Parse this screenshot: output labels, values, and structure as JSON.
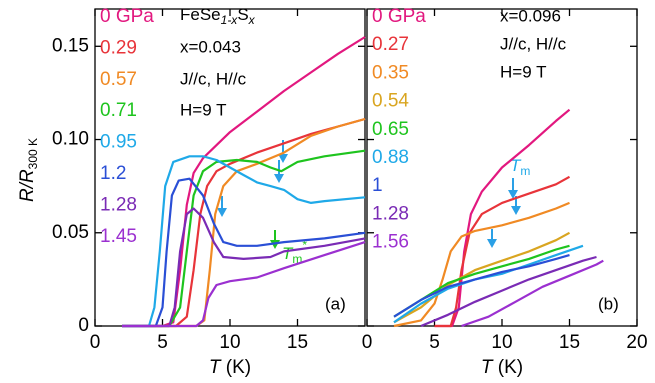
{
  "chart_data": [
    {
      "type": "line",
      "panel": "(a)",
      "formula": [
        "FeSe",
        "1-x",
        "S",
        "x"
      ],
      "annotations": [
        "x=0.043",
        "J//c,  H//c",
        "H=9 T"
      ],
      "marker_label": [
        "T",
        "m",
        "*"
      ],
      "ylabel": [
        "R/R",
        "300 K"
      ],
      "xlabel": [
        "T",
        "(K)"
      ],
      "xlim": [
        0,
        20
      ],
      "ylim": [
        0,
        0.17
      ],
      "xticks": [
        0,
        5,
        10,
        15
      ],
      "yticks": [
        0,
        0.05,
        {
          "value": 0.1,
          "label": "0.10"
        },
        0.15
      ],
      "series": [
        {
          "name": "0 GPa",
          "color": "#e2187f",
          "x": [
            2,
            5,
            5.8,
            6.3,
            6.8,
            7.3,
            8,
            10,
            12,
            14,
            16,
            18,
            20
          ],
          "values": [
            0,
            0,
            0.002,
            0.03,
            0.065,
            0.082,
            0.09,
            0.104,
            0.115,
            0.126,
            0.136,
            0.146,
            0.155
          ]
        },
        {
          "name": "0.29",
          "color": "#e8343a",
          "x": [
            2,
            6,
            6.8,
            7.3,
            7.8,
            8.3,
            9,
            10,
            12,
            14,
            16,
            18,
            20
          ],
          "values": [
            0,
            0,
            0.005,
            0.03,
            0.06,
            0.075,
            0.083,
            0.087,
            0.093,
            0.098,
            0.103,
            0.107,
            0.111
          ]
        },
        {
          "name": "0.57",
          "color": "#f08a24",
          "x": [
            2,
            7.5,
            8.1,
            8.5,
            8.9,
            9.5,
            10.5,
            12,
            14,
            16,
            18,
            20
          ],
          "values": [
            0,
            0,
            0.003,
            0.03,
            0.06,
            0.075,
            0.083,
            0.087,
            0.093,
            0.102,
            0.107,
            0.111
          ]
        },
        {
          "name": "0.71",
          "color": "#1ec41e",
          "x": [
            2,
            5.5,
            6.3,
            6.8,
            7.3,
            8,
            9,
            10.5,
            12,
            13,
            13.8,
            15,
            17,
            20
          ],
          "values": [
            0,
            0,
            0.01,
            0.04,
            0.07,
            0.083,
            0.088,
            0.089,
            0.088,
            0.085,
            0.083,
            0.088,
            0.091,
            0.094
          ]
        },
        {
          "name": "0.95",
          "color": "#1fa9e8",
          "x": [
            2,
            4,
            4.4,
            4.8,
            5.2,
            5.8,
            7,
            8,
            9,
            10,
            11,
            12,
            13,
            14,
            15,
            16,
            17,
            20
          ],
          "values": [
            0,
            0,
            0.01,
            0.04,
            0.075,
            0.088,
            0.091,
            0.091,
            0.089,
            0.085,
            0.081,
            0.077,
            0.075,
            0.073,
            0.068,
            0.066,
            0.067,
            0.069
          ]
        },
        {
          "name": "1.2",
          "color": "#2a4fd6",
          "x": [
            2,
            4.5,
            5,
            5.3,
            5.7,
            6.2,
            7,
            8,
            8.8,
            9.5,
            10.5,
            12,
            14,
            17,
            20
          ],
          "values": [
            0,
            0,
            0.01,
            0.04,
            0.07,
            0.078,
            0.079,
            0.07,
            0.055,
            0.045,
            0.043,
            0.043,
            0.045,
            0.047,
            0.05
          ]
        },
        {
          "name": "1.28",
          "color": "#7a2bb5",
          "x": [
            2,
            5.5,
            5.9,
            6.3,
            6.8,
            7.3,
            8,
            8.8,
            9.5,
            11,
            13,
            14,
            17,
            20
          ],
          "values": [
            0,
            0,
            0.01,
            0.04,
            0.06,
            0.063,
            0.058,
            0.045,
            0.037,
            0.036,
            0.037,
            0.04,
            0.043,
            0.047
          ]
        },
        {
          "name": "1.45",
          "color": "#9b30d0",
          "x": [
            2,
            7.5,
            8,
            8.4,
            9,
            10,
            12,
            14,
            17,
            20
          ],
          "values": [
            0,
            0,
            0.003,
            0.015,
            0.022,
            0.024,
            0.026,
            0.031,
            0.038,
            0.045
          ]
        }
      ]
    },
    {
      "type": "line",
      "panel": "(b)",
      "annotations": [
        "x=0.096",
        "J//c,  H//c",
        "H=9 T"
      ],
      "marker_label": [
        "T",
        "m"
      ],
      "xlabel": [
        "T",
        "(K)"
      ],
      "xlim": [
        0,
        20
      ],
      "ylim": [
        0,
        0.17
      ],
      "xticks": [
        0,
        5,
        10,
        15,
        20
      ],
      "yticks": [
        0,
        0.05,
        0.1,
        0.15
      ],
      "series": [
        {
          "name": "0 GPa",
          "color": "#e2187f",
          "x": [
            5,
            6.3,
            6.8,
            7.2,
            7.7,
            8.5,
            10,
            12,
            14,
            15
          ],
          "values": [
            0,
            0,
            0.01,
            0.04,
            0.06,
            0.072,
            0.085,
            0.097,
            0.11,
            0.116
          ]
        },
        {
          "name": "0.27",
          "color": "#e8343a",
          "x": [
            5,
            6.2,
            6.6,
            7,
            7.6,
            8.5,
            10,
            12,
            14,
            15
          ],
          "values": [
            0,
            0,
            0.01,
            0.03,
            0.05,
            0.06,
            0.066,
            0.071,
            0.076,
            0.08
          ]
        },
        {
          "name": "0.35",
          "color": "#f08a24",
          "x": [
            2,
            4,
            5,
            5.6,
            6.2,
            7,
            8,
            10,
            12,
            14,
            15
          ],
          "values": [
            0,
            0.003,
            0.012,
            0.025,
            0.04,
            0.048,
            0.051,
            0.054,
            0.058,
            0.063,
            0.066
          ]
        },
        {
          "name": "0.54",
          "color": "#d9a520",
          "x": [
            2,
            4,
            6,
            8,
            10,
            12,
            14,
            15
          ],
          "values": [
            0.002,
            0.01,
            0.022,
            0.03,
            0.035,
            0.04,
            0.046,
            0.05
          ]
        },
        {
          "name": "0.65",
          "color": "#1ec41e",
          "x": [
            2,
            4,
            6,
            8,
            10,
            12,
            14,
            15
          ],
          "values": [
            0.005,
            0.014,
            0.023,
            0.028,
            0.032,
            0.036,
            0.041,
            0.043
          ]
        },
        {
          "name": "0.88",
          "color": "#1fa9e8",
          "x": [
            2,
            4,
            6,
            8,
            10,
            12,
            14,
            16
          ],
          "values": [
            0.002,
            0.012,
            0.02,
            0.025,
            0.028,
            0.033,
            0.038,
            0.043
          ]
        },
        {
          "name": "1",
          "color": "#2a4fd6",
          "x": [
            2,
            4,
            6,
            8,
            10,
            12,
            14,
            15
          ],
          "values": [
            0.005,
            0.014,
            0.021,
            0.025,
            0.029,
            0.032,
            0.036,
            0.038
          ]
        },
        {
          "name": "1.28",
          "color": "#7a2bb5",
          "x": [
            4,
            6,
            8,
            10,
            12,
            14,
            16,
            17
          ],
          "values": [
            0,
            0.006,
            0.013,
            0.019,
            0.025,
            0.03,
            0.035,
            0.037
          ]
        },
        {
          "name": "1.56",
          "color": "#9b30d0",
          "x": [
            7,
            9,
            11,
            13,
            15,
            17,
            17.5
          ],
          "values": [
            0,
            0.005,
            0.013,
            0.021,
            0.027,
            0.033,
            0.035
          ]
        }
      ]
    }
  ]
}
